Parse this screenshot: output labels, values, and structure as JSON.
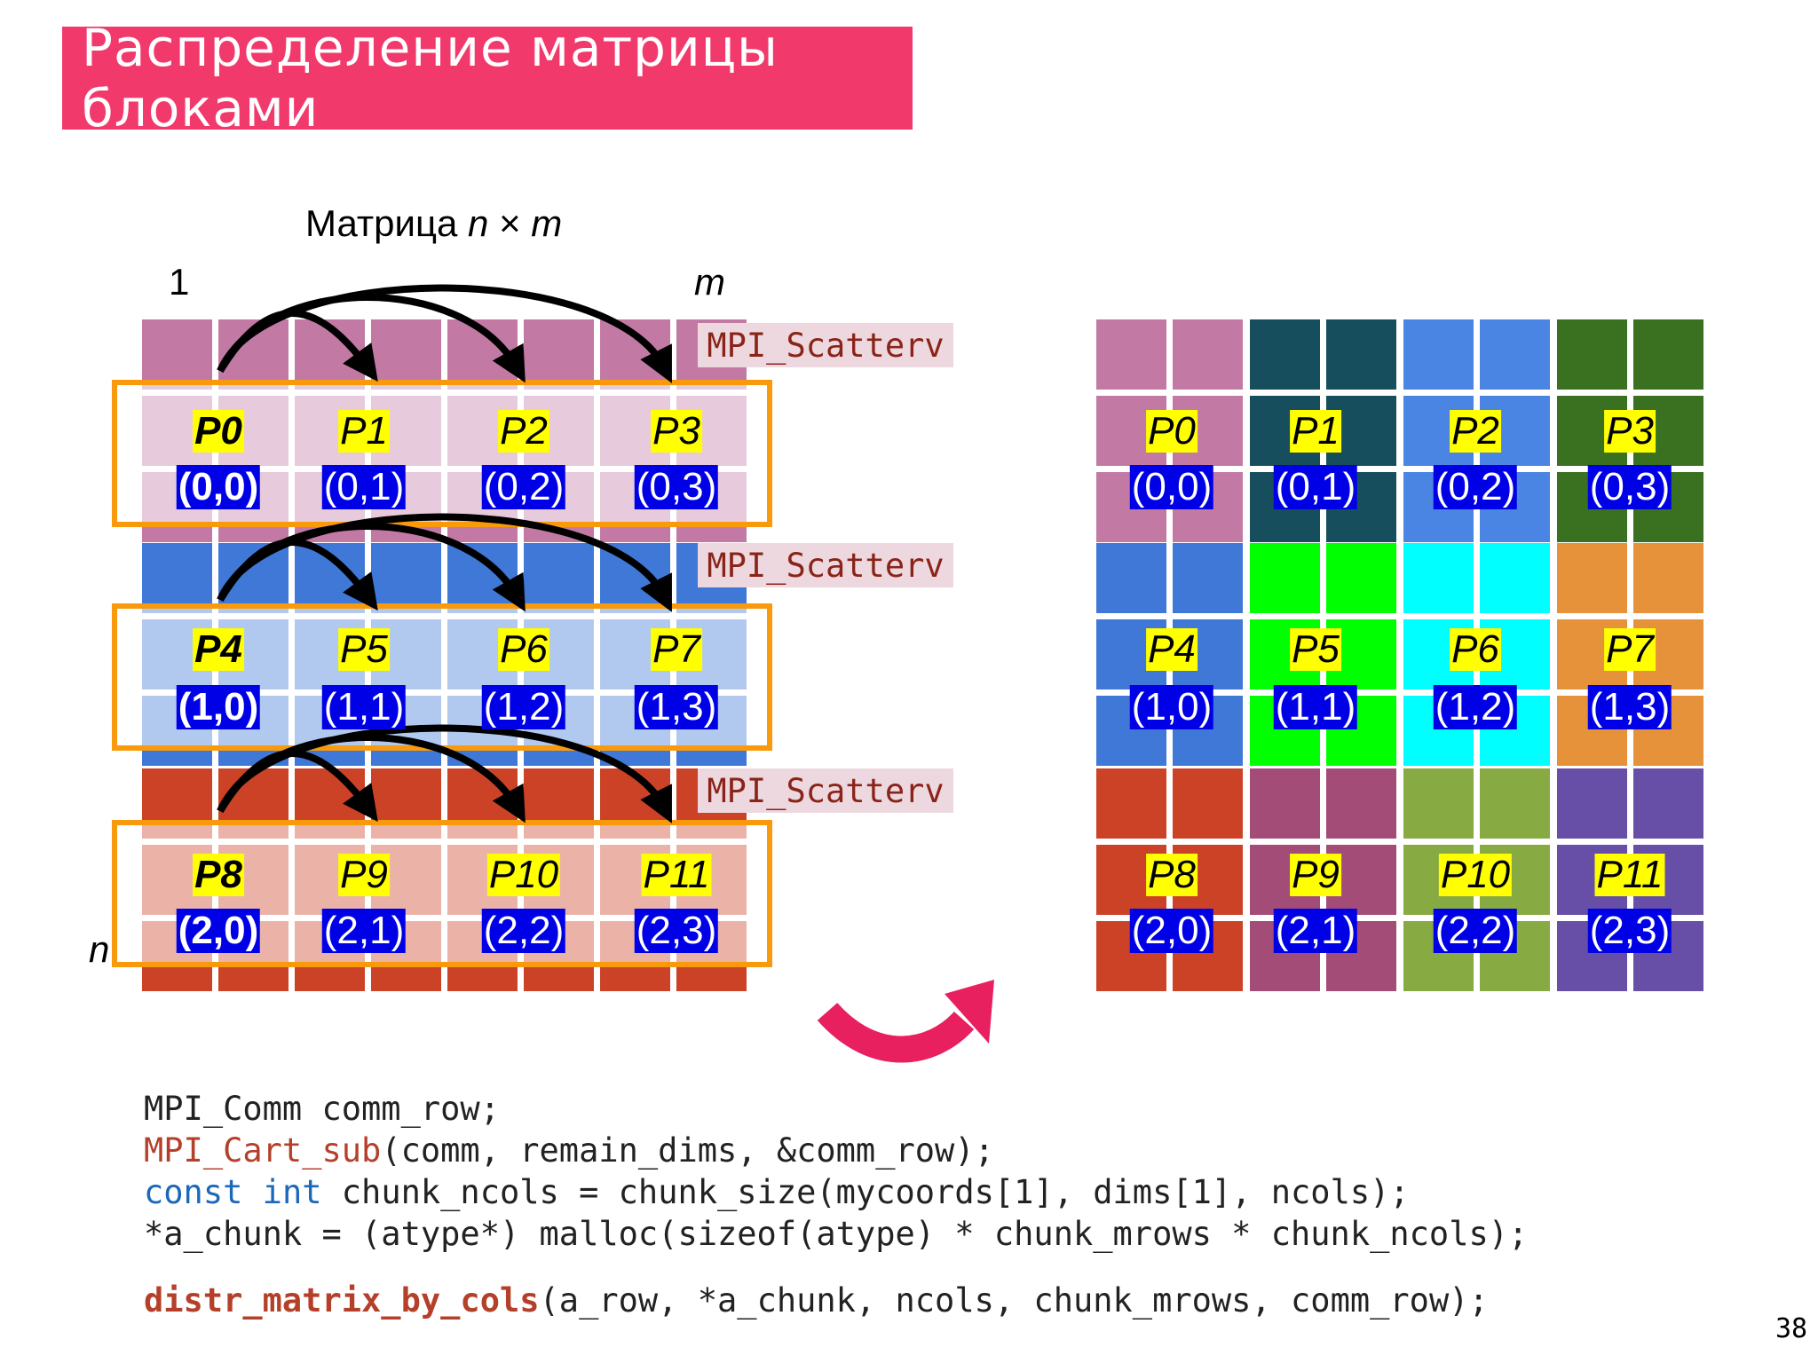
{
  "title": "Распределение матрицы блоками",
  "labels": {
    "matrix_prefix": "Матрица ",
    "n": "n",
    "times": " × ",
    "m": "m",
    "col_one": "1",
    "col_m": "m",
    "row_n": "n"
  },
  "scatter_label": "MPI_Scatterv",
  "processes": [
    {
      "name": "P0",
      "coord": "(0,0)"
    },
    {
      "name": "P1",
      "coord": "(0,1)"
    },
    {
      "name": "P2",
      "coord": "(0,2)"
    },
    {
      "name": "P3",
      "coord": "(0,3)"
    },
    {
      "name": "P4",
      "coord": "(1,0)"
    },
    {
      "name": "P5",
      "coord": "(1,1)"
    },
    {
      "name": "P6",
      "coord": "(1,2)"
    },
    {
      "name": "P7",
      "coord": "(1,3)"
    },
    {
      "name": "P8",
      "coord": "(2,0)"
    },
    {
      "name": "P9",
      "coord": "(2,1)"
    },
    {
      "name": "P10",
      "coord": "(2,2)"
    },
    {
      "name": "P11",
      "coord": "(2,3)"
    }
  ],
  "colors": {
    "title_bg": "#f13a6b",
    "left_rows": [
      "#c27aa5",
      "#3f78d6",
      "#cc4227"
    ],
    "right_blocks": [
      [
        "#c27aa5",
        "#174e5e",
        "#4a85e3",
        "#3a7121"
      ],
      [
        "#3f78d6",
        "#00ff00",
        "#00ffff",
        "#e6923a"
      ],
      [
        "#cc4227",
        "#a44c78",
        "#88aa42",
        "#674fa8"
      ]
    ],
    "frame": "#f99a0c",
    "arrow_transfer": "#e8205f"
  },
  "code": {
    "line1": "MPI_Comm comm_row;",
    "line2_kw": "MPI_Cart_sub",
    "line2_rest": "(comm, remain_dims, &comm_row);",
    "line3_kw1": "const",
    "line3_sp": " ",
    "line3_kw2": "int",
    "line3_rest": " chunk_ncols = chunk_size(mycoords[1], dims[1], ncols);",
    "line4": "*a_chunk = (atype*) malloc(sizeof(atype) * chunk_mrows * chunk_ncols);",
    "line5_kw": "distr_matrix_by_cols",
    "line5_rest": "(a_row, *a_chunk, ncols, chunk_mrows, comm_row);"
  },
  "page_number": "38"
}
